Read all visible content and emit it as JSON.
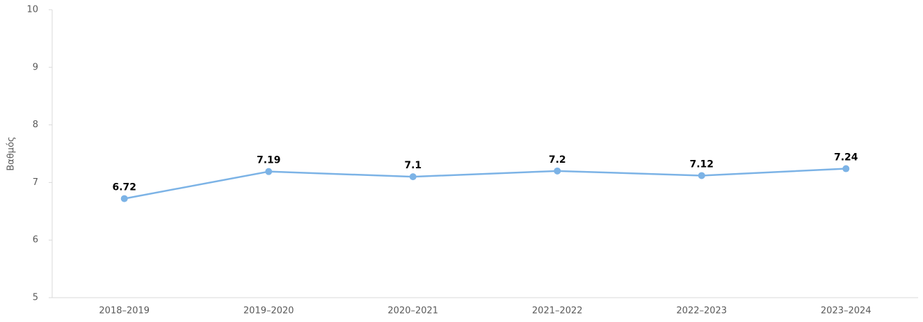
{
  "chart_data": {
    "type": "line",
    "y_label": "Βαθμός",
    "categories": [
      "2018–2019",
      "2019–2020",
      "2020–2021",
      "2021–2022",
      "2022–2023",
      "2023–2024"
    ],
    "values": [
      6.72,
      7.19,
      7.1,
      7.2,
      7.12,
      7.24
    ],
    "color": "#7cb3e6",
    "ylim": [
      5,
      10
    ],
    "yticks": [
      5,
      6,
      7,
      8,
      9,
      10
    ],
    "grid": false
  }
}
